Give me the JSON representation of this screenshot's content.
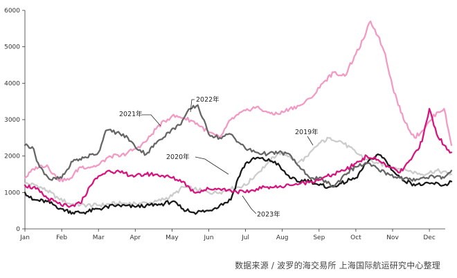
{
  "chart_data": {
    "type": "line",
    "title": "",
    "xlabel": "",
    "ylabel": "",
    "ylim": [
      0,
      6000
    ],
    "yticks": [
      0,
      1000,
      2000,
      3000,
      4000,
      5000,
      6000
    ],
    "xlim": [
      0,
      11.6
    ],
    "xticks": [
      0,
      1,
      2,
      3,
      4,
      5,
      6,
      7,
      8,
      9,
      10,
      11
    ],
    "xtick_labels": [
      "Jan",
      "Feb",
      "Mar",
      "Apr",
      "May",
      "Jun",
      "Jul",
      "Aug",
      "Sep",
      "Oct",
      "Nov",
      "Dec"
    ],
    "grid": false,
    "legend": "inline",
    "series": [
      {
        "name": "2019年",
        "color": "#cccccc",
        "x": [
          0,
          0.3,
          0.6,
          0.9,
          1.2,
          1.5,
          2.0,
          2.5,
          3.0,
          3.5,
          4.0,
          4.3,
          4.6,
          5.0,
          5.3,
          5.6,
          6.0,
          6.3,
          6.6,
          6.9,
          7.2,
          7.4,
          7.7,
          8.0,
          8.3,
          8.6,
          9.0,
          9.3,
          9.6,
          10.0,
          10.4,
          10.8,
          11.2,
          11.6
        ],
        "y": [
          1250,
          1200,
          1050,
          850,
          700,
          650,
          650,
          700,
          700,
          720,
          900,
          1150,
          1100,
          1000,
          1000,
          1100,
          1200,
          1500,
          1800,
          2100,
          2000,
          1800,
          2000,
          2350,
          2500,
          2400,
          2100,
          1900,
          1800,
          1700,
          1600,
          1500,
          1600,
          1500
        ]
      },
      {
        "name": "2020年",
        "color": "#1a1a1a",
        "x": [
          0,
          0.2,
          0.6,
          1.0,
          1.3,
          1.6,
          2.0,
          2.5,
          3.0,
          3.3,
          3.6,
          4.0,
          4.3,
          4.6,
          5.0,
          5.3,
          5.6,
          5.8,
          6.0,
          6.3,
          6.5,
          6.8,
          7.1,
          7.4,
          7.7,
          8.0,
          8.3,
          8.6,
          9.0,
          9.3,
          9.6,
          9.8,
          10.0,
          10.2,
          10.5,
          10.8,
          11.1,
          11.4,
          11.6
        ],
        "y": [
          1000,
          800,
          750,
          550,
          450,
          450,
          550,
          650,
          600,
          650,
          650,
          750,
          550,
          450,
          500,
          650,
          800,
          1400,
          1800,
          1950,
          1900,
          1850,
          1500,
          1300,
          1350,
          1200,
          1150,
          1250,
          1400,
          1800,
          2050,
          1900,
          1600,
          1400,
          1250,
          1200,
          1250,
          1200,
          1300
        ]
      },
      {
        "name": "2021年",
        "color": "#f29ac4",
        "x": [
          0,
          0.3,
          0.6,
          0.9,
          1.2,
          1.5,
          1.8,
          2.0,
          2.3,
          2.6,
          3.0,
          3.3,
          3.6,
          4.0,
          4.3,
          4.6,
          5.0,
          5.3,
          5.6,
          6.0,
          6.3,
          6.6,
          6.9,
          7.2,
          7.5,
          7.8,
          8.1,
          8.4,
          8.7,
          9.0,
          9.2,
          9.4,
          9.6,
          9.8,
          10.0,
          10.3,
          10.6,
          10.9,
          11.2,
          11.4,
          11.6
        ],
        "y": [
          1400,
          1700,
          1750,
          1350,
          1350,
          1700,
          1700,
          1750,
          2000,
          2000,
          2200,
          2400,
          2800,
          3100,
          3050,
          2950,
          2650,
          2500,
          3000,
          3250,
          3350,
          3200,
          3150,
          3300,
          3400,
          3600,
          4000,
          4300,
          4200,
          4800,
          5200,
          5700,
          5300,
          4800,
          3900,
          3000,
          2500,
          2800,
          3200,
          3300,
          2300
        ]
      },
      {
        "name": "2022年",
        "color": "#666666",
        "x": [
          0,
          0.2,
          0.4,
          0.7,
          1.0,
          1.3,
          1.6,
          2.0,
          2.2,
          2.5,
          2.8,
          3.0,
          3.3,
          3.6,
          3.9,
          4.2,
          4.5,
          4.7,
          5.0,
          5.3,
          5.6,
          6.0,
          6.3,
          6.6,
          6.9,
          7.2,
          7.5,
          7.8,
          8.1,
          8.4,
          8.7,
          9.0,
          9.3,
          9.6,
          9.9,
          10.2,
          10.5,
          10.8,
          11.1,
          11.4,
          11.6
        ],
        "y": [
          2300,
          2250,
          1700,
          1350,
          1400,
          1850,
          1950,
          2100,
          2700,
          2650,
          2500,
          2250,
          2050,
          2400,
          2650,
          2850,
          3300,
          3400,
          2600,
          2500,
          2600,
          2200,
          2100,
          2050,
          2100,
          2050,
          1650,
          1400,
          1350,
          1150,
          1500,
          1700,
          1800,
          1650,
          1500,
          1400,
          1350,
          1400,
          1450,
          1400,
          1600
        ]
      },
      {
        "name": "2023年",
        "color": "#d6157e",
        "x": [
          0,
          0.3,
          0.6,
          0.9,
          1.2,
          1.5,
          1.8,
          2.0,
          2.3,
          2.6,
          3.0,
          3.3,
          3.6,
          4.0,
          4.3,
          4.6,
          5.0,
          5.3,
          5.6,
          6.0,
          6.3,
          6.6,
          6.9,
          7.2,
          7.5,
          7.8,
          8.1,
          8.4,
          8.7,
          9.0,
          9.3,
          9.6,
          9.9,
          10.2,
          10.5,
          10.8,
          11.0,
          11.2,
          11.4,
          11.6
        ],
        "y": [
          1200,
          1100,
          850,
          700,
          600,
          700,
          1200,
          1450,
          1600,
          1550,
          1450,
          1500,
          1500,
          1400,
          1300,
          1000,
          1100,
          1100,
          1050,
          1000,
          1100,
          1150,
          1150,
          1200,
          1250,
          1300,
          1400,
          1500,
          1600,
          1800,
          2000,
          1900,
          1700,
          1550,
          1900,
          2400,
          3300,
          2600,
          2300,
          2100
        ]
      }
    ],
    "annotations": [
      {
        "text": "2019年"
      },
      {
        "text": "2020年"
      },
      {
        "text": "2021年"
      },
      {
        "text": "2022年"
      },
      {
        "text": "2023年"
      }
    ]
  },
  "source_note": "数据来源 / 波罗的海交易所  上海国际航运研究中心整理"
}
